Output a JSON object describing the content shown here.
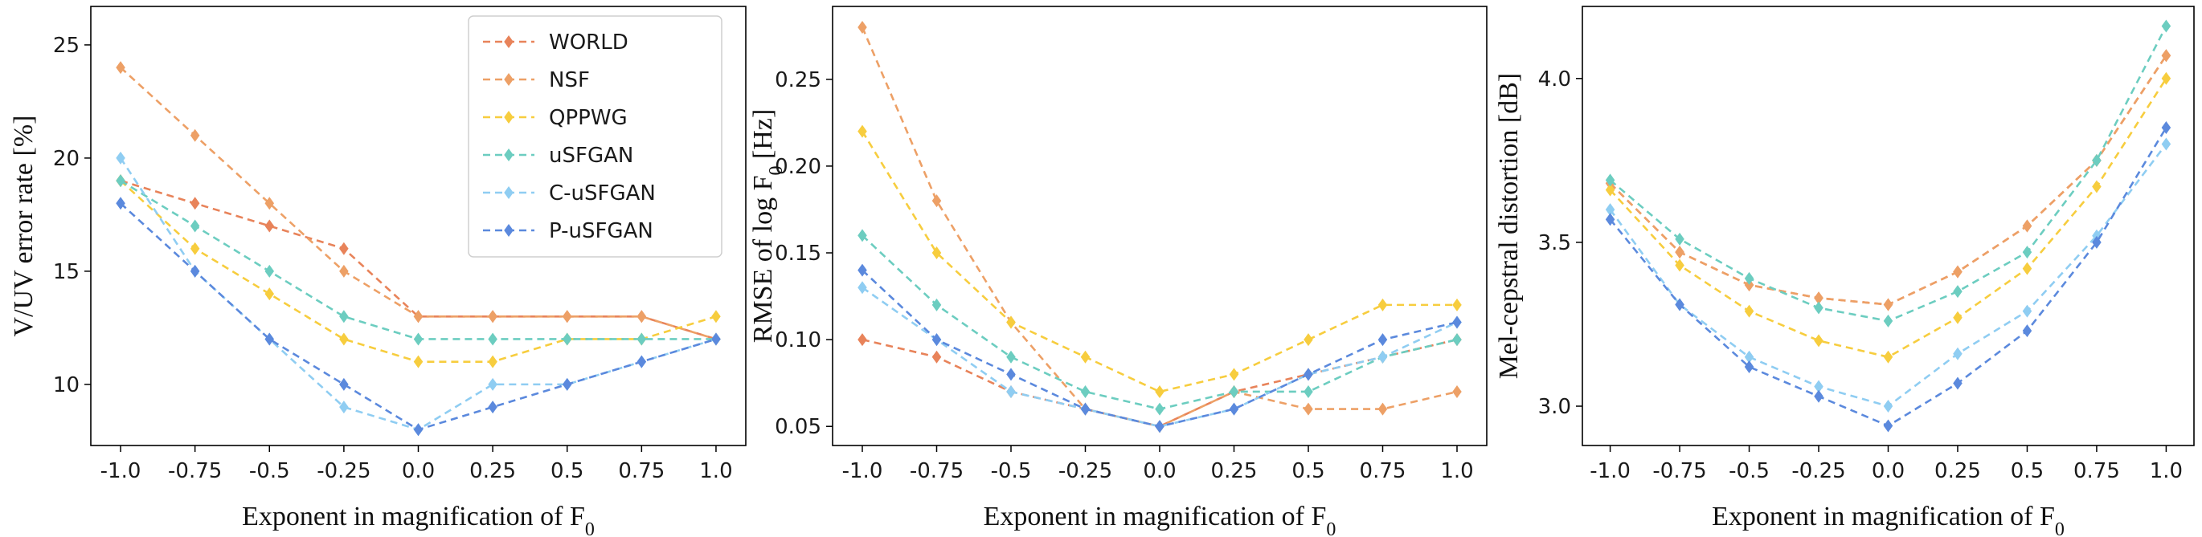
{
  "chart_data": [
    {
      "type": "line",
      "title": "",
      "xlabel": "Exponent in magnification of F",
      "xlabel_sub": "0",
      "ylabel": "V/UV error rate [%]",
      "ylabel_sub": "",
      "ylabel_suffix": "",
      "x": [
        -1.0,
        -0.75,
        -0.5,
        -0.25,
        0.0,
        0.25,
        0.5,
        0.75,
        1.0
      ],
      "x_tick_labels": [
        "-1.0",
        "-0.75",
        "-0.5",
        "-0.25",
        "0.0",
        "0.25",
        "0.5",
        "0.75",
        "1.0"
      ],
      "xlim": [
        -1.1,
        1.1
      ],
      "ylim": [
        7.3,
        26.7
      ],
      "y_ticks": [
        10,
        15,
        20,
        25
      ],
      "y_tick_labels": [
        "10",
        "15",
        "20",
        "25"
      ],
      "legend": {
        "show": true,
        "placement": "top-right"
      },
      "series": [
        {
          "name": "WORLD",
          "color": "#e8835a",
          "values": [
            19,
            18,
            17,
            16,
            13,
            13,
            13,
            13,
            12
          ]
        },
        {
          "name": "NSF",
          "color": "#eda066",
          "values": [
            24,
            21,
            18,
            15,
            13,
            13,
            13,
            13,
            12
          ]
        },
        {
          "name": "QPPWG",
          "color": "#f7cd3e",
          "values": [
            19,
            16,
            14,
            12,
            11,
            11,
            12,
            12,
            13
          ]
        },
        {
          "name": "uSFGAN",
          "color": "#6ccdc0",
          "values": [
            19,
            17,
            15,
            13,
            12,
            12,
            12,
            12,
            12
          ]
        },
        {
          "name": "C-uSFGAN",
          "color": "#8fcdf2",
          "values": [
            20,
            15,
            12,
            9,
            8,
            10,
            10,
            11,
            12
          ]
        },
        {
          "name": "P-uSFGAN",
          "color": "#5b89dd",
          "values": [
            18,
            15,
            12,
            10,
            8,
            9,
            10,
            11,
            12
          ]
        }
      ]
    },
    {
      "type": "line",
      "title": "",
      "xlabel": "Exponent in magnification of F",
      "xlabel_sub": "0",
      "ylabel": "RMSE of  log F",
      "ylabel_sub": "0",
      "ylabel_suffix": " [Hz]",
      "x": [
        -1.0,
        -0.75,
        -0.5,
        -0.25,
        0.0,
        0.25,
        0.5,
        0.75,
        1.0
      ],
      "x_tick_labels": [
        "-1.0",
        "-0.75",
        "-0.5",
        "-0.25",
        "0.0",
        "0.25",
        "0.5",
        "0.75",
        "1.0"
      ],
      "xlim": [
        -1.1,
        1.1
      ],
      "ylim": [
        0.039,
        0.292
      ],
      "y_ticks": [
        0.05,
        0.1,
        0.15,
        0.2,
        0.25
      ],
      "y_tick_labels": [
        "0.05",
        "0.10",
        "0.15",
        "0.20",
        "0.25"
      ],
      "legend": {
        "show": false
      },
      "series": [
        {
          "name": "WORLD",
          "color": "#e8835a",
          "values": [
            0.1,
            0.09,
            0.07,
            0.06,
            0.05,
            0.07,
            0.08,
            0.09,
            0.1
          ]
        },
        {
          "name": "NSF",
          "color": "#eda066",
          "values": [
            0.28,
            0.18,
            0.11,
            0.06,
            0.05,
            0.07,
            0.06,
            0.06,
            0.07
          ]
        },
        {
          "name": "QPPWG",
          "color": "#f7cd3e",
          "values": [
            0.22,
            0.15,
            0.11,
            0.09,
            0.07,
            0.08,
            0.1,
            0.12,
            0.12
          ]
        },
        {
          "name": "uSFGAN",
          "color": "#6ccdc0",
          "values": [
            0.16,
            0.12,
            0.09,
            0.07,
            0.06,
            0.07,
            0.07,
            0.09,
            0.1
          ]
        },
        {
          "name": "C-uSFGAN",
          "color": "#8fcdf2",
          "values": [
            0.13,
            0.1,
            0.07,
            0.06,
            0.05,
            0.06,
            0.08,
            0.09,
            0.11
          ]
        },
        {
          "name": "P-uSFGAN",
          "color": "#5b89dd",
          "values": [
            0.14,
            0.1,
            0.08,
            0.06,
            0.05,
            0.06,
            0.08,
            0.1,
            0.11
          ]
        }
      ]
    },
    {
      "type": "line",
      "title": "",
      "xlabel": "Exponent in magnification of F",
      "xlabel_sub": "0",
      "ylabel": "Mel-cepstral  distortion [dB]",
      "ylabel_sub": "",
      "ylabel_suffix": "",
      "x": [
        -1.0,
        -0.75,
        -0.5,
        -0.25,
        0.0,
        0.25,
        0.5,
        0.75,
        1.0
      ],
      "x_tick_labels": [
        "-1.0",
        "-0.75",
        "-0.5",
        "-0.25",
        "0.0",
        "0.25",
        "0.5",
        "0.75",
        "1.0"
      ],
      "xlim": [
        -1.1,
        1.1
      ],
      "ylim": [
        2.88,
        4.22
      ],
      "y_ticks": [
        3.0,
        3.5,
        4.0
      ],
      "y_tick_labels": [
        "3.0",
        "3.5",
        "4.0"
      ],
      "legend": {
        "show": false
      },
      "series": [
        {
          "name": "WORLD",
          "color": "#e8835a",
          "values": [
            3.68,
            3.47,
            3.37,
            3.33,
            3.31,
            3.41,
            3.55,
            3.75,
            4.07
          ]
        },
        {
          "name": "NSF",
          "color": "#eda066",
          "values": [
            3.68,
            3.47,
            3.37,
            3.33,
            3.31,
            3.41,
            3.55,
            3.75,
            4.07
          ]
        },
        {
          "name": "QPPWG",
          "color": "#f7cd3e",
          "values": [
            3.66,
            3.43,
            3.29,
            3.2,
            3.15,
            3.27,
            3.42,
            3.67,
            4.0
          ]
        },
        {
          "name": "uSFGAN",
          "color": "#6ccdc0",
          "values": [
            3.69,
            3.51,
            3.39,
            3.3,
            3.26,
            3.35,
            3.47,
            3.75,
            4.16
          ]
        },
        {
          "name": "C-uSFGAN",
          "color": "#8fcdf2",
          "values": [
            3.6,
            3.31,
            3.15,
            3.06,
            3.0,
            3.16,
            3.29,
            3.52,
            3.8
          ]
        },
        {
          "name": "P-uSFGAN",
          "color": "#5b89dd",
          "values": [
            3.57,
            3.31,
            3.12,
            3.03,
            2.94,
            3.07,
            3.23,
            3.5,
            3.85
          ]
        }
      ]
    }
  ]
}
